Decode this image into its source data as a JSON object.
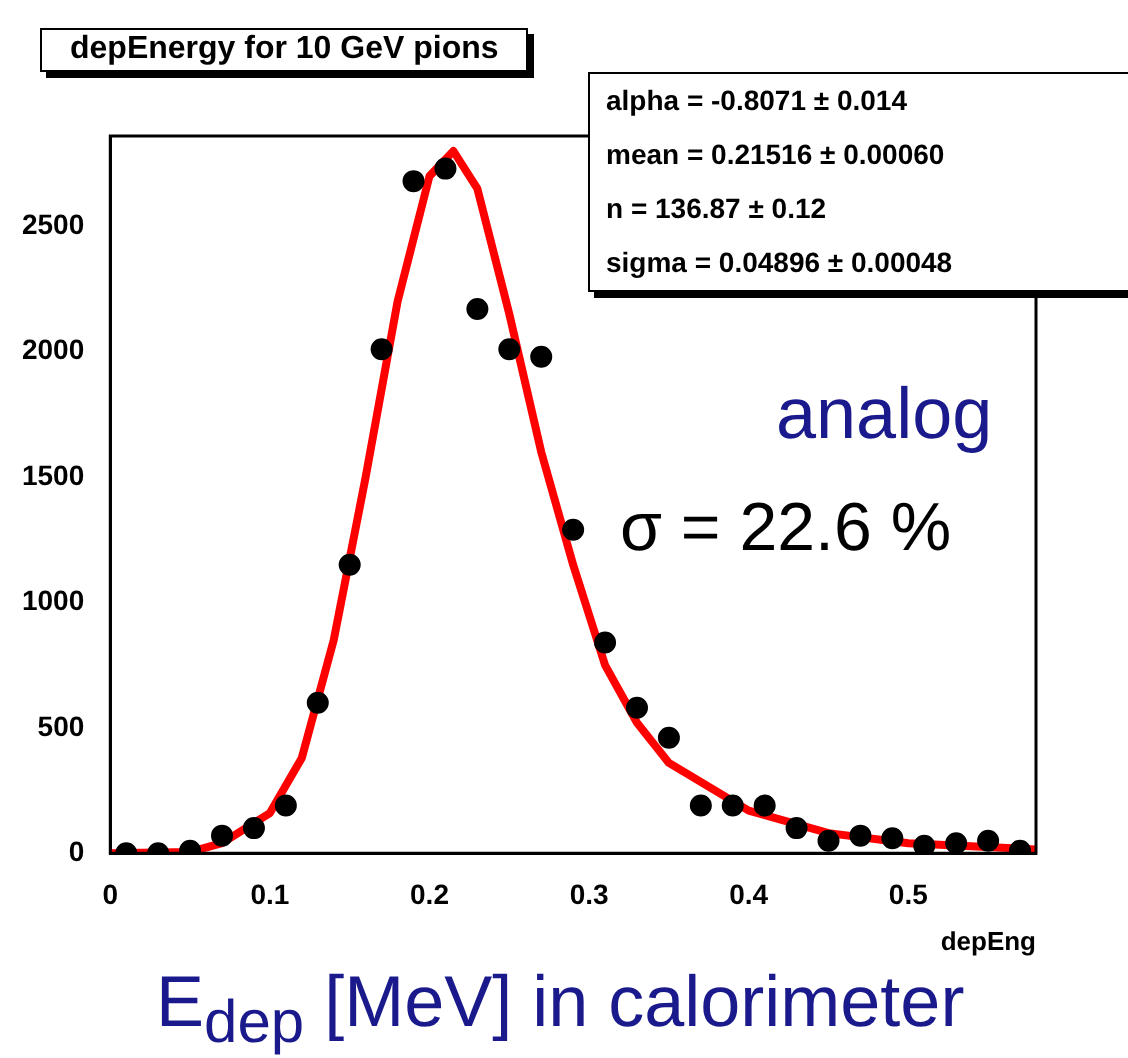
{
  "chart_data": {
    "type": "scatter",
    "title": "depEnergy for 10 GeV pions",
    "xlabel": "depEng",
    "x": [
      0.01,
      0.03,
      0.05,
      0.07,
      0.09,
      0.11,
      0.13,
      0.15,
      0.17,
      0.19,
      0.21,
      0.23,
      0.25,
      0.27,
      0.29,
      0.31,
      0.33,
      0.35,
      0.37,
      0.39,
      0.41,
      0.43,
      0.45,
      0.47,
      0.49,
      0.51,
      0.53,
      0.55,
      0.57
    ],
    "series": [
      {
        "marker": "circle",
        "color": "#000000",
        "values": [
          0,
          0,
          10,
          70,
          100,
          190,
          600,
          1150,
          2010,
          2680,
          2730,
          2170,
          2010,
          1980,
          1290,
          840,
          580,
          460,
          190,
          190,
          190,
          100,
          50,
          70,
          60,
          30,
          40,
          50,
          10
        ]
      },
      {
        "type": "line",
        "marker": "none",
        "color": "#ff0000",
        "x": [
          0,
          0.05,
          0.07,
          0.1,
          0.12,
          0.14,
          0.16,
          0.18,
          0.2,
          0.215,
          0.23,
          0.25,
          0.27,
          0.29,
          0.31,
          0.33,
          0.35,
          0.4,
          0.45,
          0.5,
          0.58
        ],
        "values": [
          0,
          5,
          40,
          160,
          380,
          850,
          1500,
          2200,
          2700,
          2800,
          2650,
          2150,
          1600,
          1150,
          750,
          520,
          360,
          170,
          80,
          40,
          15
        ]
      }
    ],
    "xlim": [
      0,
      0.58
    ],
    "xticks": [
      0,
      0.1,
      0.2,
      0.3,
      0.4,
      0.5
    ],
    "ylim": [
      0,
      2860
    ],
    "yticks": [
      0,
      500,
      1000,
      1500,
      2000,
      2500
    ],
    "grid": false,
    "legend": false,
    "line_style": "solid",
    "annotations": [
      "alpha = -0.8071 ± 0.014",
      "mean =  0.21516 ± 0.00060",
      "n =  136.87 ± 0.12",
      "sigma =  0.04896 ± 0.00048",
      "analog",
      "σ = 22.6 %",
      "E$_{dep}$ [MeV] in calorimeter"
    ]
  }
}
